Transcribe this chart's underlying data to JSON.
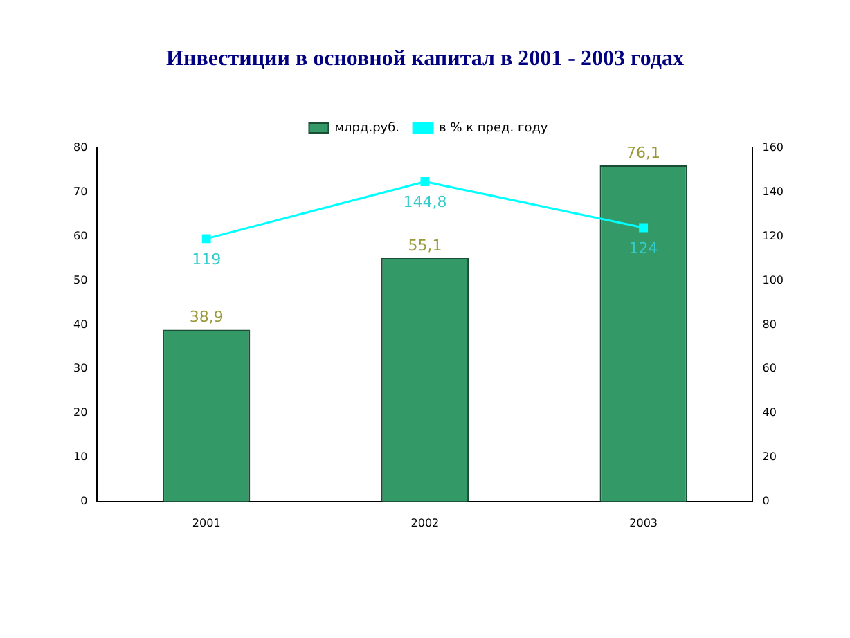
{
  "chart_data": {
    "type": "bar",
    "title": "Инвестиции в основной капитал в 2001 -  2003 годах",
    "categories": [
      "2001",
      "2002",
      "2003"
    ],
    "series": [
      {
        "name": "млрд.руб.",
        "color": "#339966",
        "values": [
          38.9,
          55.1,
          76.1
        ],
        "value_labels": [
          "38,9",
          "55,1",
          "76,1"
        ]
      },
      {
        "name": "в % к пред. году",
        "type": "line",
        "axis": "y2",
        "color": "#00ffff",
        "values": [
          119,
          144.8,
          124
        ],
        "value_labels": [
          "119",
          "144,8",
          "124"
        ]
      }
    ],
    "ylim": [
      0,
      80
    ],
    "yticks": [
      0,
      10,
      20,
      30,
      40,
      50,
      60,
      70,
      80
    ],
    "y2lim": [
      0,
      160
    ],
    "y2ticks": [
      0,
      20,
      40,
      60,
      80,
      100,
      120,
      140,
      160
    ],
    "legend": "top",
    "grid": false,
    "marker": "square",
    "line_style": "solid"
  }
}
